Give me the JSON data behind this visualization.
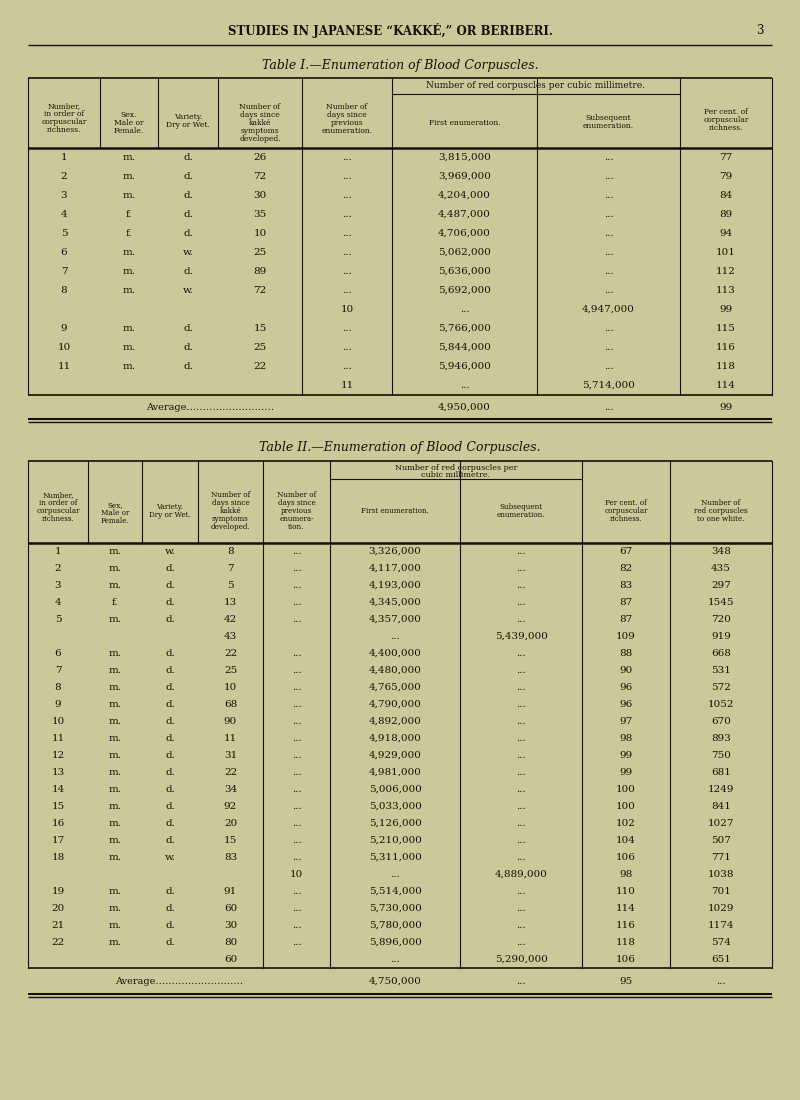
{
  "bg_color": "#ccc89a",
  "text_color": "#1a1008",
  "page_header": "STUDIES IN JAPANESE “KAKKÉ,” OR BERIBERI.",
  "page_number": "3",
  "table1_title": "Table I.—Enumeration of Blood Corpuscles.",
  "table1_subheader": "Number of red corpuscles per cubic millimetre.",
  "table1_data": [
    [
      "1",
      "m.",
      "d.",
      "26",
      "...",
      "3,815,000",
      "...",
      "77"
    ],
    [
      "2",
      "m.",
      "d.",
      "72",
      "...",
      "3,969,000",
      "...",
      "79"
    ],
    [
      "3",
      "m.",
      "d.",
      "30",
      "...",
      "4,204,000",
      "...",
      "84"
    ],
    [
      "4",
      "f.",
      "d.",
      "35",
      "...",
      "4,487,000",
      "...",
      "89"
    ],
    [
      "5",
      "f.",
      "d.",
      "10",
      "...",
      "4,706,000",
      "...",
      "94"
    ],
    [
      "6",
      "m.",
      "w.",
      "25",
      "...",
      "5,062,000",
      "...",
      "101"
    ],
    [
      "7",
      "m.",
      "d.",
      "89",
      "...",
      "5,636,000",
      "...",
      "112"
    ],
    [
      "8",
      "m.",
      "w.",
      "72",
      "...",
      "5,692,000",
      "...",
      "113"
    ],
    [
      "",
      "",
      "",
      "",
      "10",
      "...",
      "4,947,000",
      "99"
    ],
    [
      "9",
      "m.",
      "d.",
      "15",
      "...",
      "5,766,000",
      "...",
      "115"
    ],
    [
      "10",
      "m.",
      "d.",
      "25",
      "...",
      "5,844,000",
      "...",
      "116"
    ],
    [
      "11",
      "m.",
      "d.",
      "22",
      "...",
      "5,946,000",
      "...",
      "118"
    ],
    [
      "",
      "",
      "",
      "",
      "11",
      "...",
      "5,714,000",
      "114"
    ]
  ],
  "table1_avg": [
    "Average………………………",
    "4,950,000",
    "...",
    "99"
  ],
  "table2_title": "Table II.—Enumeration of Blood Corpuscles.",
  "table2_subheader": "Number of red corpuscles per\ncubic millimetre.",
  "table2_data": [
    [
      "1",
      "m.",
      "w.",
      "8",
      "...",
      "3,326,000",
      "...",
      "67",
      "348"
    ],
    [
      "2",
      "m.",
      "d.",
      "7",
      "...",
      "4,117,000",
      "...",
      "82",
      "435"
    ],
    [
      "3",
      "m.",
      "d.",
      "5",
      "...",
      "4,193,000",
      "...",
      "83",
      "297"
    ],
    [
      "4",
      "f.",
      "d.",
      "13",
      "...",
      "4,345,000",
      "...",
      "87",
      "1545"
    ],
    [
      "5",
      "m.",
      "d.",
      "42",
      "...",
      "4,357,000",
      "...",
      "87",
      "720"
    ],
    [
      "",
      "",
      "",
      "43",
      "",
      "...",
      "5,439,000",
      "109",
      "919"
    ],
    [
      "6",
      "m.",
      "d.",
      "22",
      "...",
      "4,400,000",
      "...",
      "88",
      "668"
    ],
    [
      "7",
      "m.",
      "d.",
      "25",
      "...",
      "4,480,000",
      "...",
      "90",
      "531"
    ],
    [
      "8",
      "m.",
      "d.",
      "10",
      "...",
      "4,765,000",
      "...",
      "96",
      "572"
    ],
    [
      "9",
      "m.",
      "d.",
      "68",
      "...",
      "4,790,000",
      "...",
      "96",
      "1052"
    ],
    [
      "10",
      "m.",
      "d.",
      "90",
      "...",
      "4,892,000",
      "...",
      "97",
      "670"
    ],
    [
      "11",
      "m.",
      "d.",
      "11",
      "...",
      "4,918,000",
      "...",
      "98",
      "893"
    ],
    [
      "12",
      "m.",
      "d.",
      "31",
      "...",
      "4,929,000",
      "...",
      "99",
      "750"
    ],
    [
      "13",
      "m.",
      "d.",
      "22",
      "...",
      "4,981,000",
      "...",
      "99",
      "681"
    ],
    [
      "14",
      "m.",
      "d.",
      "34",
      "...",
      "5,006,000",
      "...",
      "100",
      "1249"
    ],
    [
      "15",
      "m.",
      "d.",
      "92",
      "...",
      "5,033,000",
      "...",
      "100",
      "841"
    ],
    [
      "16",
      "m.",
      "d.",
      "20",
      "...",
      "5,126,000",
      "...",
      "102",
      "1027"
    ],
    [
      "17",
      "m.",
      "d.",
      "15",
      "...",
      "5,210,000",
      "...",
      "104",
      "507"
    ],
    [
      "18",
      "m.",
      "w.",
      "83",
      "...",
      "5,311,000",
      "...",
      "106",
      "771"
    ],
    [
      "",
      "",
      "",
      "",
      "10",
      "...",
      "4,889,000",
      "98",
      "1038"
    ],
    [
      "19",
      "m.",
      "d.",
      "91",
      "...",
      "5,514,000",
      "...",
      "110",
      "701"
    ],
    [
      "20",
      "m.",
      "d.",
      "60",
      "...",
      "5,730,000",
      "...",
      "114",
      "1029"
    ],
    [
      "21",
      "m.",
      "d.",
      "30",
      "...",
      "5,780,000",
      "...",
      "116",
      "1174"
    ],
    [
      "22",
      "m.",
      "d.",
      "80",
      "...",
      "5,896,000",
      "...",
      "118",
      "574"
    ],
    [
      "",
      "",
      "",
      "60",
      "",
      "...",
      "5,290,000",
      "106",
      "651"
    ]
  ],
  "table2_avg": [
    "Average………………………",
    "4,750,000",
    "...",
    "95",
    "..."
  ]
}
